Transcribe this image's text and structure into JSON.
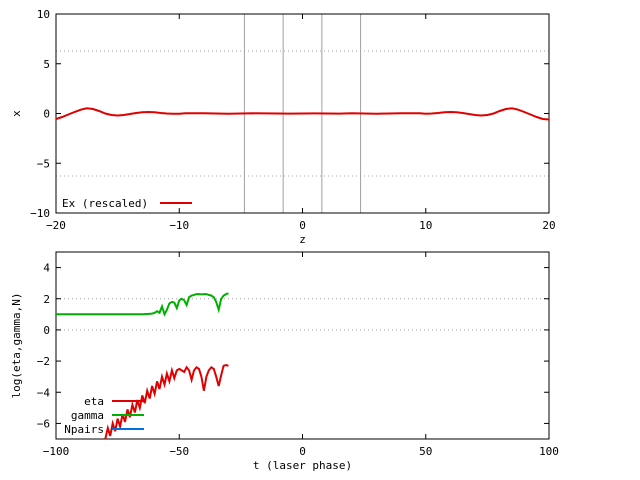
{
  "chart_data": [
    {
      "type": "line",
      "xlabel": "z",
      "ylabel": "x",
      "xlim": [
        -20,
        20
      ],
      "ylim": [
        -10,
        10
      ],
      "xticks": [
        -20,
        -10,
        0,
        10,
        20
      ],
      "yticks": [
        -10,
        -5,
        0,
        5,
        10
      ],
      "xtick_labels": [
        "−20",
        "−10",
        "0",
        "10",
        "20"
      ],
      "ytick_labels": [
        "−10",
        "−5",
        "0",
        "5",
        "10"
      ],
      "hlines": [
        6.283,
        -6.283
      ],
      "vlines": [
        -4.712,
        -1.571,
        1.571,
        4.712
      ],
      "legend_position": "bottom-left",
      "series": [
        {
          "name": "Ex (rescaled)",
          "color": "#e00000",
          "x": [
            -20,
            -19.5,
            -19,
            -18.5,
            -18,
            -17.5,
            -17,
            -16.5,
            -16,
            -15.5,
            -15,
            -14.5,
            -14,
            -13.5,
            -13,
            -12.5,
            -12,
            -11.5,
            -11,
            -10.5,
            -10,
            -9.5,
            -9,
            -8,
            -7,
            -6,
            -5,
            -4,
            -3,
            -2,
            -1,
            0,
            1,
            2,
            3,
            4,
            5,
            6,
            7,
            8,
            9,
            9.5,
            10,
            10.5,
            11,
            11.5,
            12,
            12.5,
            13,
            13.5,
            14,
            14.5,
            15,
            15.5,
            16,
            16.5,
            17,
            17.5,
            18,
            18.5,
            19,
            19.5,
            20
          ],
          "y": [
            -0.55,
            -0.35,
            -0.1,
            0.15,
            0.38,
            0.52,
            0.45,
            0.25,
            0.0,
            -0.15,
            -0.2,
            -0.15,
            -0.05,
            0.05,
            0.12,
            0.15,
            0.12,
            0.05,
            0.0,
            -0.03,
            -0.02,
            0.02,
            0.03,
            0.02,
            0.0,
            -0.02,
            0.0,
            0.02,
            0.01,
            0.0,
            -0.01,
            0.0,
            0.01,
            0.0,
            -0.01,
            0.02,
            0.0,
            -0.02,
            0.0,
            0.02,
            0.03,
            0.02,
            -0.02,
            0.0,
            0.05,
            0.12,
            0.15,
            0.12,
            0.05,
            -0.05,
            -0.15,
            -0.2,
            -0.15,
            0.0,
            0.25,
            0.45,
            0.52,
            0.38,
            0.15,
            -0.1,
            -0.35,
            -0.55,
            -0.6
          ]
        }
      ]
    },
    {
      "type": "line",
      "xlabel": "t (laser phase)",
      "ylabel": "log(eta,gamma,N)",
      "xlim": [
        -100,
        100
      ],
      "ylim": [
        -7,
        5
      ],
      "xticks": [
        -100,
        -50,
        0,
        50,
        100
      ],
      "yticks": [
        -6,
        -4,
        -2,
        0,
        2,
        4
      ],
      "xtick_labels": [
        "−100",
        "−50",
        "0",
        "50",
        "100"
      ],
      "ytick_labels": [
        "−6",
        "−4",
        "−2",
        "0",
        "2",
        "4"
      ],
      "hlines": [
        2,
        0
      ],
      "legend_position": "bottom-left",
      "series": [
        {
          "name": "eta",
          "color": "#e00000",
          "x": [
            -80,
            -79,
            -78,
            -77,
            -76,
            -75,
            -74,
            -73,
            -72,
            -71,
            -70,
            -69,
            -68,
            -67,
            -66,
            -65,
            -64,
            -63,
            -62,
            -61,
            -60,
            -59,
            -58,
            -57,
            -56,
            -55,
            -54,
            -53,
            -52,
            -51,
            -50,
            -49,
            -48,
            -47,
            -46,
            -45,
            -44,
            -43,
            -42,
            -41,
            -40,
            -39,
            -38,
            -37,
            -36,
            -35,
            -34,
            -33,
            -32,
            -31,
            -30
          ],
          "y": [
            -7.0,
            -6.3,
            -6.8,
            -6.0,
            -6.5,
            -5.7,
            -6.2,
            -5.4,
            -5.9,
            -5.1,
            -5.6,
            -4.8,
            -5.3,
            -4.5,
            -5.0,
            -4.2,
            -4.7,
            -3.9,
            -4.4,
            -3.6,
            -4.1,
            -3.3,
            -3.8,
            -3.0,
            -3.5,
            -2.8,
            -3.3,
            -2.6,
            -3.1,
            -2.6,
            -2.5,
            -2.6,
            -2.7,
            -2.4,
            -2.6,
            -3.2,
            -2.6,
            -2.4,
            -2.5,
            -3.0,
            -3.9,
            -3.0,
            -2.6,
            -2.4,
            -2.5,
            -3.0,
            -3.6,
            -2.9,
            -2.3,
            -2.25,
            -2.3
          ]
        },
        {
          "name": "gamma",
          "color": "#00b000",
          "x": [
            -100,
            -95,
            -90,
            -85,
            -80,
            -75,
            -70,
            -65,
            -63,
            -61,
            -60,
            -59,
            -58,
            -57,
            -56,
            -55,
            -54,
            -53,
            -52,
            -51,
            -50,
            -49,
            -48,
            -47,
            -46,
            -45,
            -44,
            -43,
            -42,
            -41,
            -40,
            -39,
            -38,
            -37,
            -36,
            -35,
            -34,
            -33,
            -32,
            -31,
            -30
          ],
          "y": [
            1.0,
            1.0,
            1.0,
            1.0,
            1.0,
            1.0,
            1.0,
            1.0,
            1.02,
            1.05,
            1.1,
            1.2,
            1.1,
            1.5,
            1.0,
            1.3,
            1.7,
            1.8,
            1.75,
            1.4,
            1.9,
            2.0,
            1.9,
            1.6,
            2.1,
            2.2,
            2.25,
            2.3,
            2.3,
            2.28,
            2.3,
            2.3,
            2.25,
            2.2,
            2.1,
            1.8,
            1.3,
            2.0,
            2.2,
            2.3,
            2.35
          ]
        },
        {
          "name": "Npairs",
          "color": "#0070e0",
          "x": [],
          "y": []
        }
      ]
    }
  ]
}
